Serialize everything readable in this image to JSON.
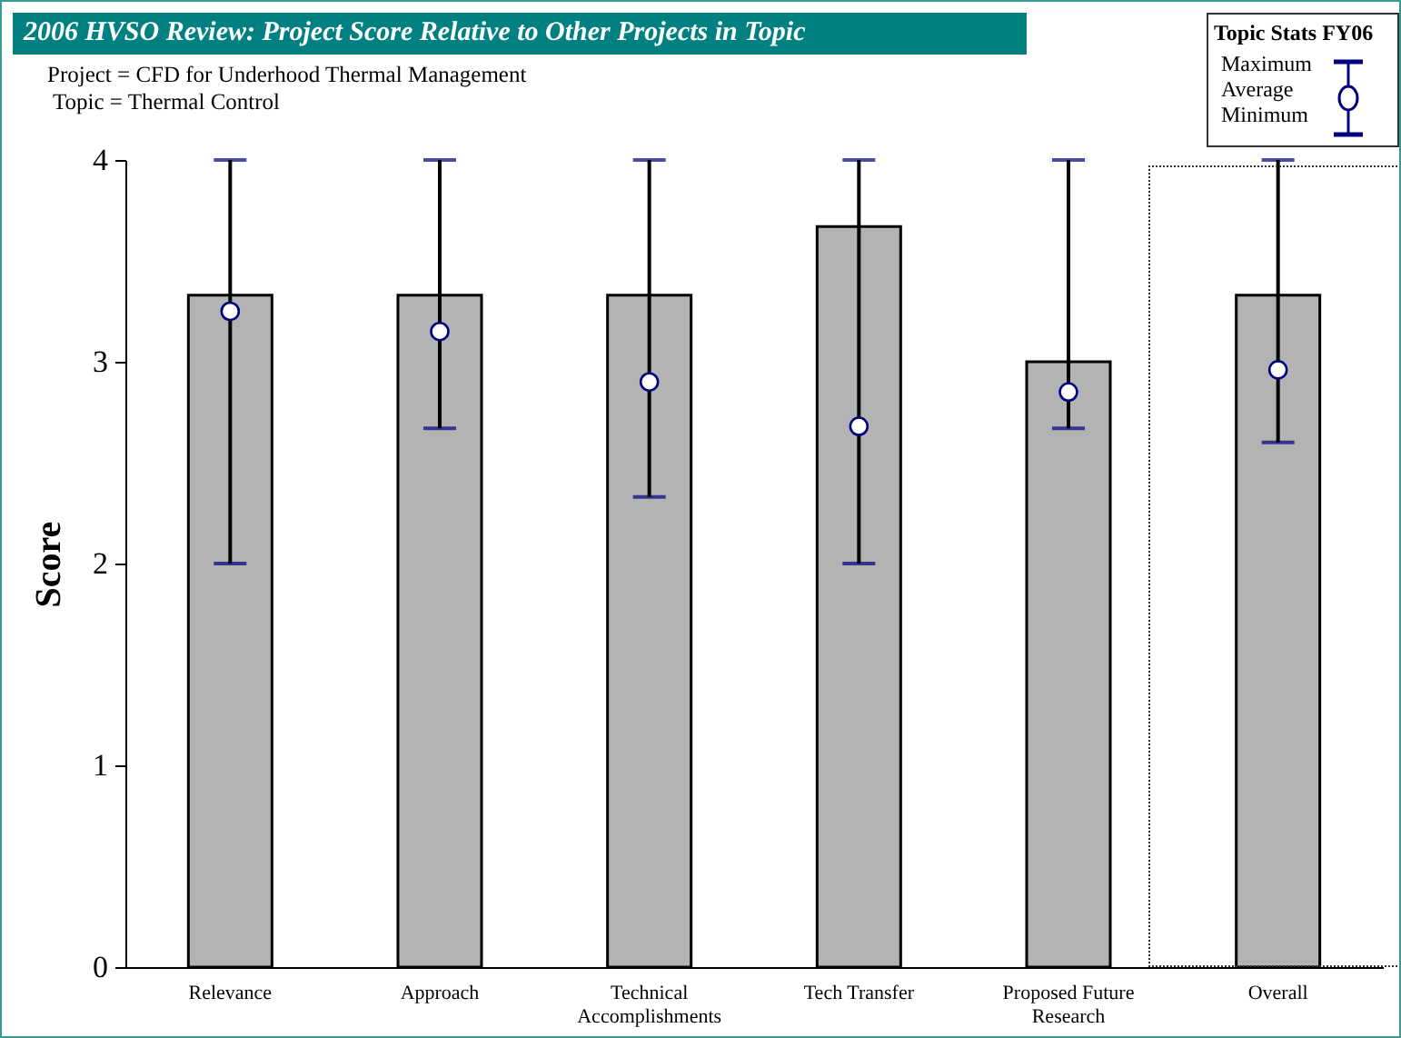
{
  "chart_data": {
    "type": "bar",
    "title": "2006 HVSO Review: Project Score Relative to Other Projects in Topic",
    "subtitle": "Project = CFD for Underhood Thermal Management",
    "annotations": [
      "Topic = Thermal Control",
      "Maximum",
      "Minimum"
    ],
    "ylabel": "Score",
    "legend_title": "Topic Stats FY06",
    "legend": "top right",
    "categories": [
      "Relevance",
      "Approach",
      "Technical Accomplishments",
      "Tech Transfer",
      "Proposed Future Research",
      "Overall"
    ],
    "series": [
      {
        "color": "#b3b3b3",
        "values": [
          3.33,
          3.33,
          3.33,
          3.67,
          3.0,
          3.33
        ],
        "errors": [
          [
            2,
            4
          ],
          [
            2.67,
            4
          ],
          [
            2.33,
            4
          ],
          [
            2,
            4
          ],
          [
            2.67,
            4
          ],
          [
            2.6,
            4
          ]
        ]
      },
      {
        "name": "Average",
        "type": "scatter",
        "color": "#000080",
        "values": [
          3.25,
          3.15,
          2.9,
          2.68,
          2.85,
          2.96
        ]
      }
    ],
    "ylim": [
      0,
      4
    ],
    "yticks": [
      0,
      1,
      2,
      3,
      4
    ],
    "grid": false
  }
}
